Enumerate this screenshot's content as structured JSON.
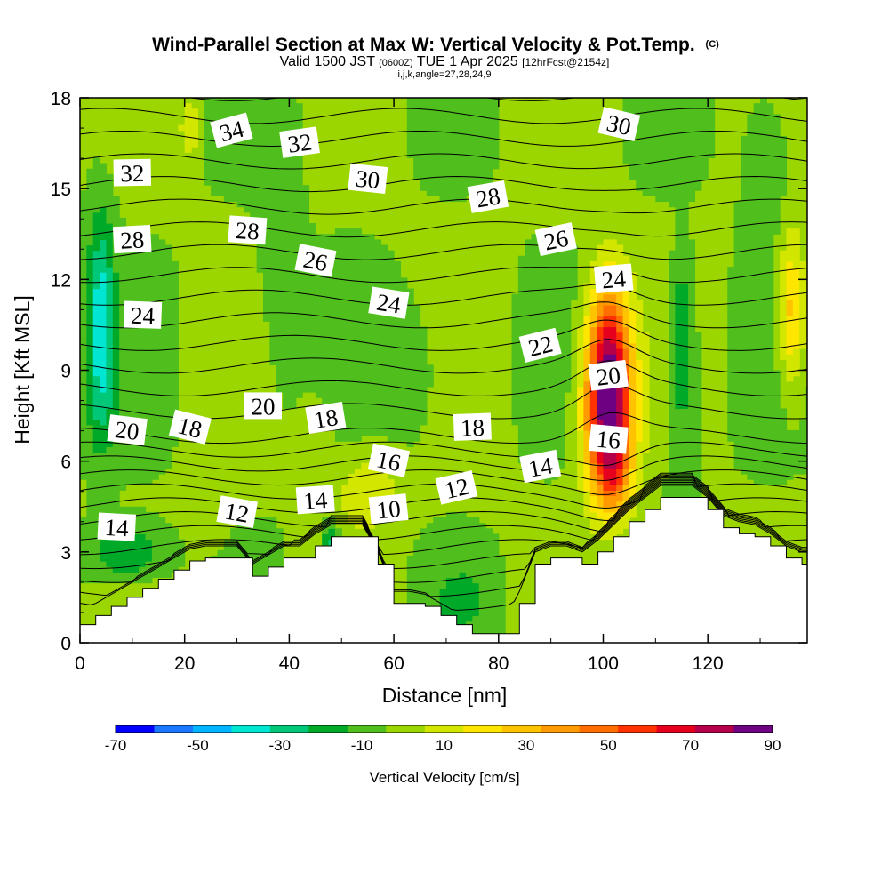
{
  "chart_data": {
    "type": "heatmap",
    "title": "Wind-Parallel Section at Max W: Vertical Velocity & Pot.Temp.",
    "title_mark": "(C)",
    "subtitle_parts": [
      "Valid 1500 JST",
      "(0600Z)",
      "TUE 1 Apr 2025",
      "[12hrFcst@2154z]"
    ],
    "subtitle2": "i,j,k,angle=27,28,24,9",
    "xlabel": "Distance [nm]",
    "ylabel": "Height [Kft MSL]",
    "xlim": [
      0,
      139
    ],
    "ylim": [
      0,
      18
    ],
    "xticks": [
      0,
      20,
      40,
      60,
      80,
      100,
      120
    ],
    "yticks": [
      0,
      3,
      6,
      9,
      12,
      15,
      18
    ],
    "grid": false,
    "colorbar": {
      "title": "Vertical Velocity [cm/s]",
      "placement": "bottom",
      "labels": [
        -70,
        -50,
        -30,
        -10,
        10,
        30,
        50,
        70,
        90
      ],
      "bounds": [
        -70,
        -60,
        -50,
        -40,
        -30,
        -20,
        -10,
        0,
        10,
        20,
        30,
        40,
        50,
        60,
        70,
        80,
        90
      ],
      "colors": [
        "#0000ff",
        "#1a78ff",
        "#00b4ff",
        "#00e6d2",
        "#00c878",
        "#00aa28",
        "#50bf1e",
        "#9cd600",
        "#d2e600",
        "#ffe600",
        "#ffc300",
        "#ff9b00",
        "#ff6e00",
        "#ff3200",
        "#e6001e",
        "#b4004b",
        "#6e0082"
      ]
    },
    "terrain_profile": {
      "x": [
        0,
        3,
        6,
        9,
        12,
        15,
        18,
        21,
        24,
        27,
        30,
        33,
        36,
        39,
        42,
        45,
        48,
        51,
        54,
        57,
        60,
        63,
        66,
        69,
        72,
        75,
        78,
        81,
        84,
        87,
        90,
        93,
        96,
        99,
        102,
        105,
        108,
        111,
        114,
        117,
        120,
        123,
        126,
        129,
        132,
        135,
        138
      ],
      "height": [
        0.6,
        0.9,
        1.2,
        1.5,
        1.8,
        2.1,
        2.4,
        2.7,
        2.8,
        2.8,
        2.8,
        2.2,
        2.5,
        2.8,
        2.8,
        3.2,
        3.5,
        3.5,
        3.5,
        2.6,
        1.3,
        1.3,
        1.2,
        0.9,
        0.6,
        0.3,
        0.3,
        0.3,
        1.3,
        2.6,
        2.8,
        2.8,
        2.6,
        3.0,
        3.5,
        4.0,
        4.4,
        4.8,
        4.8,
        4.8,
        4.4,
        3.8,
        3.6,
        3.5,
        3.2,
        2.8,
        2.6
      ]
    },
    "w_features": [
      {
        "x": 101,
        "z": 7.5,
        "w": 90
      },
      {
        "x": 101,
        "z": 10,
        "w": 60
      },
      {
        "x": 4,
        "z": 11,
        "w": -30
      },
      {
        "x": 115,
        "z": 10.5,
        "w": -20
      },
      {
        "x": 55,
        "z": 5,
        "w": 20
      },
      {
        "x": 21,
        "z": 17,
        "w": 20
      }
    ],
    "isotherm_labels": [
      {
        "value": "34",
        "x": 29,
        "z": 16.9
      },
      {
        "value": "32",
        "x": 42,
        "z": 16.5
      },
      {
        "value": "32",
        "x": 10,
        "z": 15.5
      },
      {
        "value": "30",
        "x": 55,
        "z": 15.3
      },
      {
        "value": "30",
        "x": 103,
        "z": 17.1
      },
      {
        "value": "28",
        "x": 78,
        "z": 14.7
      },
      {
        "value": "28",
        "x": 10,
        "z": 13.3
      },
      {
        "value": "28",
        "x": 32,
        "z": 13.6
      },
      {
        "value": "26",
        "x": 45,
        "z": 12.6
      },
      {
        "value": "26",
        "x": 91,
        "z": 13.3
      },
      {
        "value": "24",
        "x": 102,
        "z": 12.0
      },
      {
        "value": "24",
        "x": 12,
        "z": 10.8
      },
      {
        "value": "24",
        "x": 59,
        "z": 11.2
      },
      {
        "value": "22",
        "x": 88,
        "z": 9.8
      },
      {
        "value": "20",
        "x": 101,
        "z": 8.8
      },
      {
        "value": "20",
        "x": 35,
        "z": 7.8
      },
      {
        "value": "20",
        "x": 9,
        "z": 7.0
      },
      {
        "value": "18",
        "x": 21,
        "z": 7.1
      },
      {
        "value": "18",
        "x": 47,
        "z": 7.4
      },
      {
        "value": "18",
        "x": 75,
        "z": 7.1
      },
      {
        "value": "16",
        "x": 101,
        "z": 6.7
      },
      {
        "value": "16",
        "x": 59,
        "z": 6.0
      },
      {
        "value": "14",
        "x": 88,
        "z": 5.8
      },
      {
        "value": "14",
        "x": 45,
        "z": 4.7
      },
      {
        "value": "14",
        "x": 7,
        "z": 3.8
      },
      {
        "value": "12",
        "x": 30,
        "z": 4.3
      },
      {
        "value": "12",
        "x": 72,
        "z": 5.1
      },
      {
        "value": "10",
        "x": 59,
        "z": 4.4
      }
    ]
  }
}
